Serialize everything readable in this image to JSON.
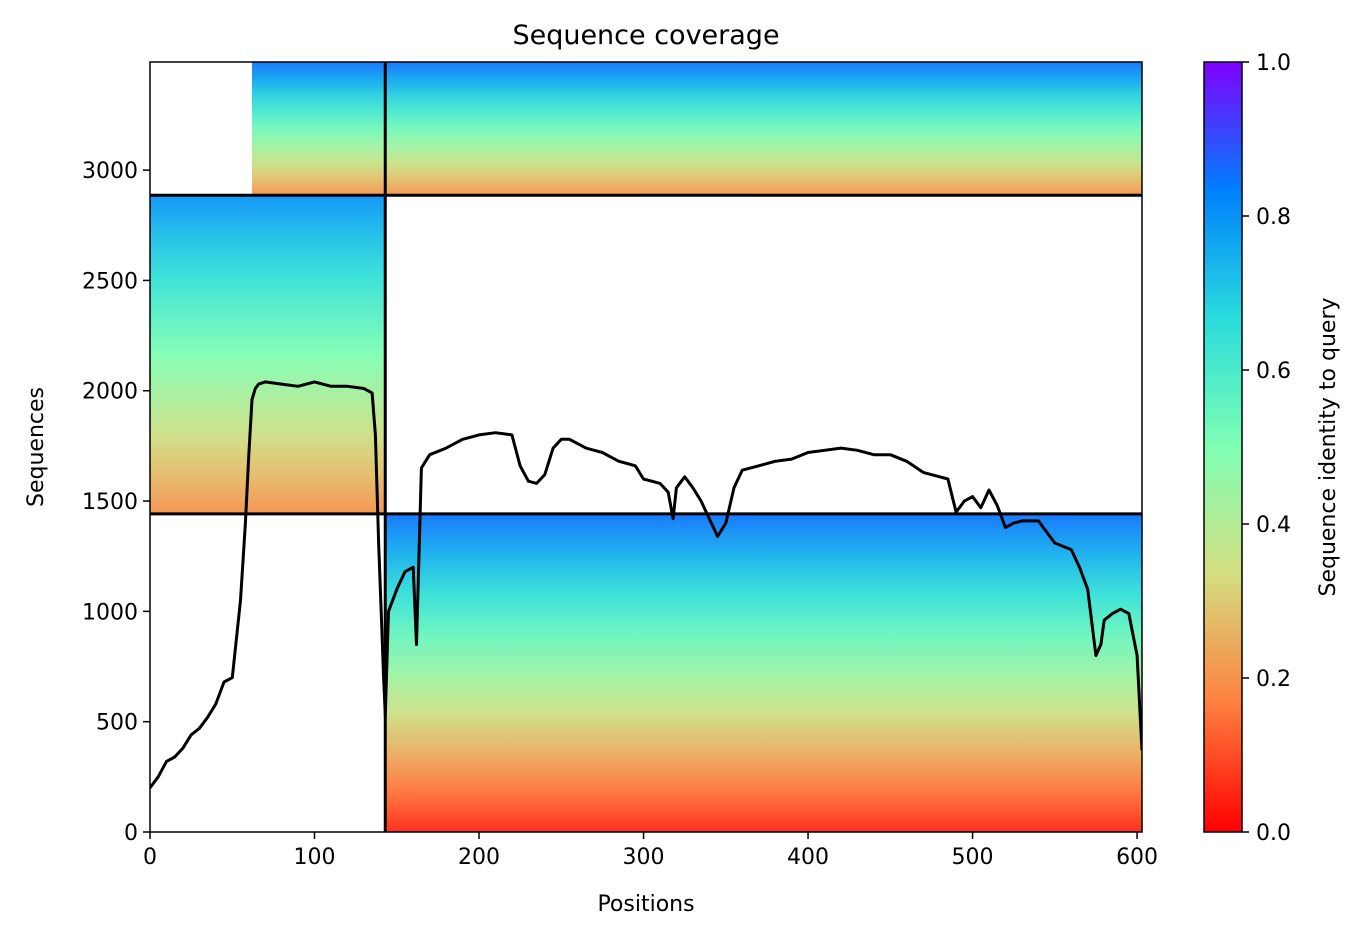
{
  "chart_data": {
    "type": "heatmap",
    "title": "Sequence coverage",
    "xlabel": "Positions",
    "ylabel": "Sequences",
    "xlim": [
      0,
      603
    ],
    "ylim": [
      0,
      3490
    ],
    "xticks": [
      0,
      100,
      200,
      300,
      400,
      500,
      600
    ],
    "yticks": [
      0,
      500,
      1000,
      1500,
      2000,
      2500,
      3000
    ],
    "colorbar": {
      "label": "Sequence identity to query",
      "range": [
        0,
        1
      ],
      "ticks": [
        0.0,
        0.2,
        0.4,
        0.6,
        0.8,
        1.0
      ],
      "colormap": [
        "#ff0000",
        "#ff7f3f",
        "#d4dd80",
        "#7ffeb3",
        "#2adcdc",
        "#0080fe",
        "#7f00ff"
      ]
    },
    "line_color": "#000000",
    "separator_lines": {
      "x": [
        143
      ],
      "y": [
        1442,
        2886
      ]
    },
    "blocks": [
      {
        "x": [
          0,
          143
        ],
        "y": [
          2886,
          3490
        ],
        "identity_top": 0.85,
        "identity_bottom": 0.2,
        "coverage_start": 62
      },
      {
        "x": [
          143,
          603
        ],
        "y": [
          2886,
          3490
        ],
        "identity_top": 0.85,
        "identity_bottom": 0.2
      },
      {
        "x": [
          0,
          143
        ],
        "y": [
          1442,
          2886
        ],
        "identity_top": 0.8,
        "identity_bottom": 0.2
      },
      {
        "x": [
          143,
          603
        ],
        "y": [
          0,
          1442
        ],
        "identity_top": 0.85,
        "identity_bottom": 0.05
      }
    ],
    "coverage_line": {
      "x": [
        0,
        5,
        10,
        15,
        20,
        25,
        30,
        35,
        40,
        45,
        50,
        55,
        58,
        60,
        62,
        64,
        66,
        70,
        80,
        90,
        100,
        110,
        120,
        130,
        135,
        137,
        139,
        141,
        142,
        143,
        145,
        150,
        155,
        160,
        162,
        165,
        170,
        180,
        190,
        200,
        210,
        220,
        225,
        230,
        235,
        240,
        245,
        250,
        255,
        260,
        265,
        270,
        275,
        280,
        285,
        290,
        295,
        300,
        305,
        310,
        315,
        318,
        320,
        325,
        330,
        335,
        340,
        345,
        350,
        355,
        360,
        370,
        380,
        390,
        400,
        410,
        420,
        430,
        440,
        450,
        460,
        470,
        480,
        485,
        490,
        495,
        500,
        505,
        510,
        515,
        520,
        525,
        530,
        540,
        550,
        560,
        565,
        570,
        575,
        578,
        580,
        585,
        590,
        595,
        600,
        603
      ],
      "y": [
        200,
        250,
        320,
        340,
        380,
        440,
        470,
        520,
        580,
        680,
        700,
        1050,
        1400,
        1700,
        1960,
        2010,
        2030,
        2040,
        2030,
        2020,
        2040,
        2020,
        2020,
        2010,
        1990,
        1800,
        1300,
        900,
        700,
        530,
        1000,
        1100,
        1180,
        1200,
        850,
        1650,
        1710,
        1740,
        1780,
        1800,
        1810,
        1800,
        1660,
        1590,
        1580,
        1620,
        1740,
        1780,
        1780,
        1760,
        1740,
        1730,
        1720,
        1700,
        1680,
        1670,
        1660,
        1600,
        1590,
        1580,
        1540,
        1420,
        1560,
        1610,
        1560,
        1500,
        1420,
        1340,
        1400,
        1560,
        1640,
        1660,
        1680,
        1690,
        1720,
        1730,
        1740,
        1730,
        1710,
        1710,
        1680,
        1630,
        1610,
        1600,
        1450,
        1500,
        1520,
        1470,
        1550,
        1480,
        1380,
        1400,
        1410,
        1410,
        1310,
        1280,
        1200,
        1100,
        800,
        850,
        960,
        990,
        1010,
        990,
        800,
        370
      ]
    }
  }
}
